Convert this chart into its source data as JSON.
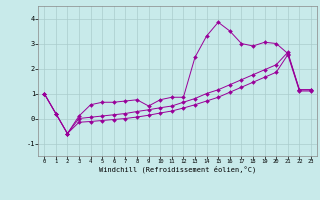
{
  "xlabel": "Windchill (Refroidissement éolien,°C)",
  "background_color": "#c8eaea",
  "line_color": "#990099",
  "x_values": [
    0,
    1,
    2,
    3,
    4,
    5,
    6,
    7,
    8,
    9,
    10,
    11,
    12,
    13,
    14,
    15,
    16,
    17,
    18,
    19,
    20,
    21,
    22,
    23
  ],
  "series1": [
    1.0,
    0.2,
    -0.6,
    0.1,
    0.55,
    0.65,
    0.65,
    0.7,
    0.75,
    0.5,
    0.75,
    0.85,
    0.85,
    2.45,
    3.3,
    3.85,
    3.5,
    3.0,
    2.9,
    3.05,
    3.0,
    2.6,
    1.15,
    1.15
  ],
  "series2": [
    1.0,
    0.2,
    -0.6,
    0.0,
    0.05,
    0.1,
    0.15,
    0.2,
    0.28,
    0.35,
    0.43,
    0.5,
    0.65,
    0.8,
    1.0,
    1.15,
    1.35,
    1.55,
    1.75,
    1.95,
    2.15,
    2.65,
    1.15,
    1.15
  ],
  "series3": [
    1.0,
    0.2,
    -0.6,
    -0.15,
    -0.12,
    -0.08,
    -0.04,
    0.0,
    0.06,
    0.13,
    0.22,
    0.3,
    0.42,
    0.55,
    0.7,
    0.85,
    1.05,
    1.25,
    1.45,
    1.65,
    1.85,
    2.55,
    1.1,
    1.1
  ],
  "ylim": [
    -1.5,
    4.5
  ],
  "yticks": [
    -1,
    0,
    1,
    2,
    3,
    4
  ],
  "xlim": [
    -0.5,
    23.5
  ],
  "grid_color": "#aacccc",
  "marker": "D",
  "markersize": 2.0,
  "linewidth": 0.7
}
